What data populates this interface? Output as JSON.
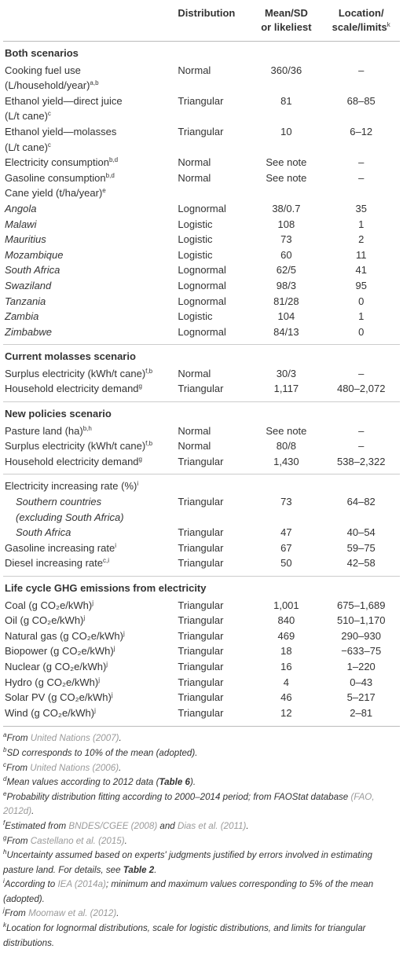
{
  "header": {
    "distribution": "Distribution",
    "mean": [
      "Mean/SD",
      "or likeliest"
    ],
    "location": [
      "Location/",
      "scale/limits"
    ],
    "location_note": "k"
  },
  "sections": [
    {
      "title": "Both scenarios",
      "rows": [
        {
          "label": [
            "Cooking fuel use",
            "(L/household/year)"
          ],
          "note": "a,b",
          "distribution": "Normal",
          "mean": "360/36",
          "location": "–"
        },
        {
          "label": [
            "Ethanol yield—direct juice",
            "(L/t cane)"
          ],
          "note": "c",
          "distribution": "Triangular",
          "mean": "81",
          "location": "68–85"
        },
        {
          "label": [
            "Ethanol yield—molasses",
            "(L/t cane)"
          ],
          "note": "c",
          "distribution": "Triangular",
          "mean": "10",
          "location": "6–12"
        },
        {
          "label": [
            "Electricity consumption"
          ],
          "note": "b,d",
          "distribution": "Normal",
          "mean": "See note",
          "location": "–"
        },
        {
          "label": [
            "Gasoline consumption"
          ],
          "note": "b,d",
          "distribution": "Normal",
          "mean": "See note",
          "location": "–"
        },
        {
          "label": [
            "Cane yield (t/ha/year)"
          ],
          "note": "e"
        },
        {
          "label": [
            "Angola"
          ],
          "italic": true,
          "distribution": "Lognormal",
          "mean": "38/0.7",
          "location": "35"
        },
        {
          "label": [
            "Malawi"
          ],
          "italic": true,
          "distribution": "Logistic",
          "mean": "108",
          "location": "1"
        },
        {
          "label": [
            "Mauritius"
          ],
          "italic": true,
          "distribution": "Logistic",
          "mean": "73",
          "location": "2"
        },
        {
          "label": [
            "Mozambique"
          ],
          "italic": true,
          "distribution": "Logistic",
          "mean": "60",
          "location": "11"
        },
        {
          "label": [
            "South Africa"
          ],
          "italic": true,
          "distribution": "Lognormal",
          "mean": "62/5",
          "location": "41"
        },
        {
          "label": [
            "Swaziland"
          ],
          "italic": true,
          "distribution": "Lognormal",
          "mean": "98/3",
          "location": "95"
        },
        {
          "label": [
            "Tanzania"
          ],
          "italic": true,
          "distribution": "Lognormal",
          "mean": "81/28",
          "location": "0"
        },
        {
          "label": [
            "Zambia"
          ],
          "italic": true,
          "distribution": "Logistic",
          "mean": "104",
          "location": "1"
        },
        {
          "label": [
            "Zimbabwe"
          ],
          "italic": true,
          "distribution": "Lognormal",
          "mean": "84/13",
          "location": "0"
        }
      ]
    },
    {
      "title": "Current molasses scenario",
      "rows": [
        {
          "label": [
            "Surplus electricity (kWh/t cane)"
          ],
          "note": "f,b",
          "distribution": "Normal",
          "mean": "30/3",
          "location": "–"
        },
        {
          "label": [
            "Household electricity demand"
          ],
          "note": "g",
          "distribution": "Triangular",
          "mean": "1,117",
          "location": "480–2,072"
        }
      ]
    },
    {
      "title": "New policies scenario",
      "rows": [
        {
          "label": [
            "Pasture land (ha)"
          ],
          "note": "b,h",
          "distribution": "Normal",
          "mean": "See note",
          "location": "–"
        },
        {
          "label": [
            "Surplus electricity (kWh/t cane)"
          ],
          "note": "f,b",
          "distribution": "Normal",
          "mean": "80/8",
          "location": "–"
        },
        {
          "label": [
            "Household electricity demand"
          ],
          "note": "g",
          "distribution": "Triangular",
          "mean": "1,430",
          "location": "538–2,322"
        }
      ]
    },
    {
      "rows": [
        {
          "label": [
            "Electricity increasing rate (%)"
          ],
          "note": "i"
        },
        {
          "label": [
            "Southern countries",
            "(excluding South Africa)"
          ],
          "italic": true,
          "indent": true,
          "distribution": "Triangular",
          "mean": "73",
          "location": "64–82"
        },
        {
          "label": [
            "South Africa"
          ],
          "italic": true,
          "indent": true,
          "distribution": "Triangular",
          "mean": "47",
          "location": "40–54"
        },
        {
          "label": [
            "Gasoline increasing rate"
          ],
          "note": "i",
          "distribution": "Triangular",
          "mean": "67",
          "location": "59–75"
        },
        {
          "label": [
            "Diesel increasing rate"
          ],
          "note": "c,i",
          "distribution": "Triangular",
          "mean": "50",
          "location": "42–58"
        }
      ]
    },
    {
      "title": "Life cycle GHG emissions from electricity",
      "rows": [
        {
          "label": [
            "Coal (g CO₂e/kWh)"
          ],
          "note": "j",
          "distribution": "Triangular",
          "mean": "1,001",
          "location": "675–1,689"
        },
        {
          "label": [
            "Oil (g CO₂e/kWh)"
          ],
          "note": "j",
          "distribution": "Triangular",
          "mean": "840",
          "location": "510–1,170"
        },
        {
          "label": [
            "Natural gas (g CO₂e/kWh)"
          ],
          "note": "j",
          "distribution": "Triangular",
          "mean": "469",
          "location": "290–930"
        },
        {
          "label": [
            "Biopower (g CO₂e/kWh)"
          ],
          "note": "j",
          "distribution": "Triangular",
          "mean": "18",
          "location": "−633–75"
        },
        {
          "label": [
            "Nuclear (g CO₂e/kWh)"
          ],
          "note": "j",
          "distribution": "Triangular",
          "mean": "16",
          "location": "1–220"
        },
        {
          "label": [
            "Hydro (g CO₂e/kWh)"
          ],
          "note": "j",
          "distribution": "Triangular",
          "mean": "4",
          "location": "0–43"
        },
        {
          "label": [
            "Solar PV (g CO₂e/kWh)"
          ],
          "note": "j",
          "distribution": "Triangular",
          "mean": "46",
          "location": "5–217"
        },
        {
          "label": [
            "Wind (g CO₂e/kWh)"
          ],
          "note": "j",
          "distribution": "Triangular",
          "mean": "12",
          "location": "2–81"
        }
      ]
    }
  ],
  "footnotes": [
    {
      "mark": "a",
      "parts": [
        {
          "text": "From "
        },
        {
          "text": "United Nations (2007)",
          "style": "link"
        },
        {
          "text": "."
        }
      ]
    },
    {
      "mark": "b",
      "parts": [
        {
          "text": "SD corresponds to 10% of the mean (adopted)."
        }
      ]
    },
    {
      "mark": "c",
      "parts": [
        {
          "text": "From "
        },
        {
          "text": "United Nations (2006)",
          "style": "link"
        },
        {
          "text": "."
        }
      ]
    },
    {
      "mark": "d",
      "parts": [
        {
          "text": "Mean values according to 2012 data ("
        },
        {
          "text": "Table 6",
          "style": "bold"
        },
        {
          "text": ")."
        }
      ]
    },
    {
      "mark": "e",
      "parts": [
        {
          "text": "Probability distribution fitting according to 2000–2014 period; from FAOStat database "
        },
        {
          "text": "(FAO, 2012d)",
          "style": "link"
        },
        {
          "text": "."
        }
      ]
    },
    {
      "mark": "f",
      "parts": [
        {
          "text": "Estimated from "
        },
        {
          "text": "BNDES/CGEE (2008)",
          "style": "link"
        },
        {
          "text": " and "
        },
        {
          "text": "Dias et al. (2011)",
          "style": "link"
        },
        {
          "text": "."
        }
      ]
    },
    {
      "mark": "g",
      "parts": [
        {
          "text": "From "
        },
        {
          "text": "Castellano et al. (2015)",
          "style": "link"
        },
        {
          "text": "."
        }
      ]
    },
    {
      "mark": "h",
      "parts": [
        {
          "text": "Uncertainty assumed based on experts' judgments justified by errors involved in estimating pasture land. For details, see "
        },
        {
          "text": "Table 2",
          "style": "bold"
        },
        {
          "text": "."
        }
      ]
    },
    {
      "mark": "i",
      "parts": [
        {
          "text": "According to "
        },
        {
          "text": "IEA (2014a)",
          "style": "link"
        },
        {
          "text": "; minimum and maximum values corresponding to 5% of the mean (adopted)."
        }
      ]
    },
    {
      "mark": "j",
      "parts": [
        {
          "text": "From "
        },
        {
          "text": "Moomaw et al. (2012)",
          "style": "link"
        },
        {
          "text": "."
        }
      ]
    },
    {
      "mark": "k",
      "parts": [
        {
          "text": "Location for lognormal distributions, scale for logistic distributions, and limits for triangular distributions."
        }
      ]
    }
  ]
}
